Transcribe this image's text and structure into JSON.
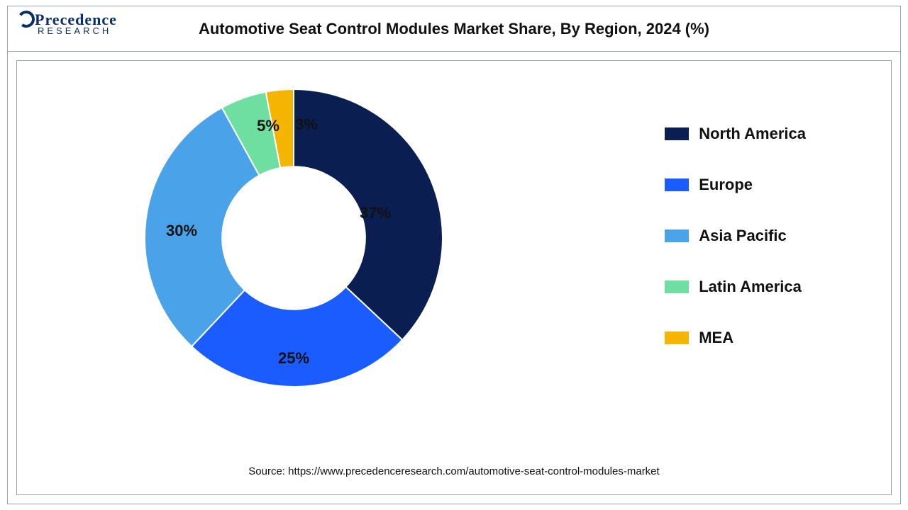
{
  "title": "Automotive Seat Control Modules Market Share, By Region, 2024 (%)",
  "logo": {
    "line1": "Precedence",
    "line2": "RESEARCH"
  },
  "source": "Source: https://www.precedenceresearch.com/automotive-seat-control-modules-market",
  "chart": {
    "type": "donut",
    "inner_radius_ratio": 0.48,
    "outer_radius": 210,
    "background_color": "#ffffff",
    "border_color": "#9aa3ad",
    "title_fontsize": 22,
    "label_fontsize": 22,
    "legend_fontsize": 22,
    "start_angle_deg": 0,
    "segments": [
      {
        "name": "North America",
        "value": 37,
        "color": "#0a1e52",
        "label": "37%"
      },
      {
        "name": "Europe",
        "value": 25,
        "color": "#1a5cff",
        "label": "25%"
      },
      {
        "name": "Asia Pacific",
        "value": 30,
        "color": "#4aa3e8",
        "label": "30%"
      },
      {
        "name": "Latin America",
        "value": 5,
        "color": "#6edfa0",
        "label": "5%"
      },
      {
        "name": "MEA",
        "value": 3,
        "color": "#f5b400",
        "label": "3%"
      }
    ],
    "legend_position": "right"
  }
}
